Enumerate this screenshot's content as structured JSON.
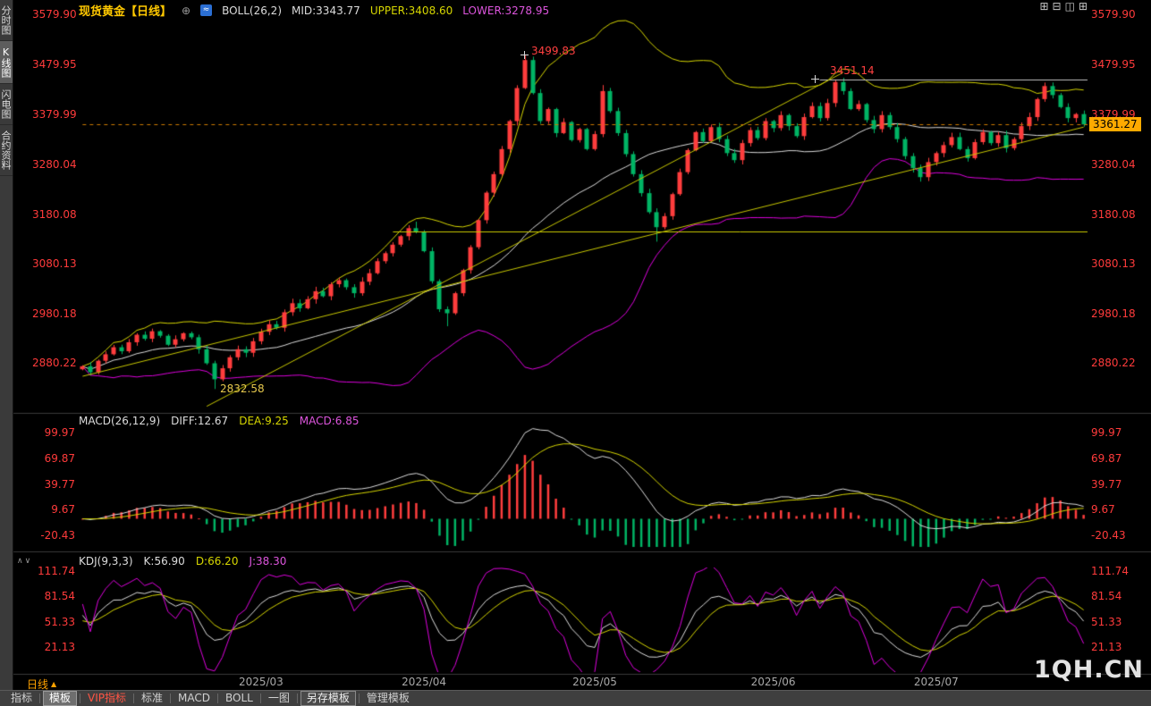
{
  "header": {
    "title": "现货黄金【日线】",
    "add_icon": "⊕",
    "indicator_icon": "≈",
    "boll_label": "BOLL(26,2)",
    "mid": "MID:3343.77",
    "upper": "UPPER:3408.60",
    "lower": "LOWER:3278.95"
  },
  "icons": {
    "window_layouts": [
      "⊞",
      "⊟",
      "◫",
      "⊞"
    ],
    "panel_expand": "∧",
    "panel_collapse": "∨",
    "period_arrow": "▲"
  },
  "sidebar": {
    "tabs": [
      {
        "label": "分时图",
        "active": false
      },
      {
        "label": "K线图",
        "active": true
      },
      {
        "label": "闪电图",
        "active": false
      },
      {
        "label": "合约资料",
        "active": false
      }
    ]
  },
  "price_axis": {
    "labels": [
      "3579.90",
      "3479.95",
      "3379.99",
      "3280.04",
      "3180.08",
      "3080.13",
      "2980.18",
      "2880.22"
    ]
  },
  "macd_axis": {
    "labels": [
      "99.97",
      "69.87",
      "39.77",
      "9.67",
      "-20.43"
    ]
  },
  "kdj_axis": {
    "labels": [
      "111.74",
      "81.54",
      "51.33",
      "21.13"
    ]
  },
  "macd_legend": {
    "name": "MACD(26,12,9)",
    "diff": "DIFF:12.67",
    "dea": "DEA:9.25",
    "macd": "MACD:6.85"
  },
  "kdj_legend": {
    "name": "KDJ(9,3,3)",
    "k": "K:56.90",
    "d": "D:66.20",
    "j": "J:38.30"
  },
  "annotations": {
    "peak": "3499.83",
    "june_high": "3451.14",
    "feb_low": "2832.58",
    "last_price": "3361.27"
  },
  "x_axis": {
    "period_label": "日线"
  },
  "watermark": "1QH.CN",
  "toolbar": {
    "items": [
      {
        "label": "指标",
        "style": "plain"
      },
      {
        "label": "模板",
        "style": "button"
      },
      {
        "label": "VIP指标",
        "style": "vip"
      },
      {
        "label": "标准",
        "style": "plain"
      },
      {
        "label": "MACD",
        "style": "plain"
      },
      {
        "label": "BOLL",
        "style": "plain"
      },
      {
        "label": "一图",
        "style": "plain"
      },
      {
        "label": "另存模板",
        "style": "boxed"
      },
      {
        "label": "管理模板",
        "style": "plain"
      }
    ]
  },
  "colors": {
    "up": "#ff3d3d",
    "down": "#00b464",
    "boll_mid": "#dcdcdc",
    "boll_upper": "#d6d600",
    "boll_lower": "#dd00dd",
    "diff_line": "#dcdcdc",
    "dea_line": "#d6d600",
    "kdj_k": "#dcdcdc",
    "kdj_d": "#d6d600",
    "kdj_j": "#dd00dd",
    "axis_text": "#ff3b3b",
    "title": "#ffc800",
    "tag_bg": "#ffaa00",
    "dashed_line": "#cc7a00"
  },
  "chart_data": {
    "type": "candlestick",
    "symbol": "现货黄金",
    "period": "日线",
    "first_open": 2872,
    "closes": [
      2878,
      2866,
      2889,
      2902,
      2916,
      2908,
      2926,
      2941,
      2933,
      2948,
      2939,
      2921,
      2932,
      2944,
      2936,
      2912,
      2884,
      2852,
      2874,
      2896,
      2912,
      2905,
      2928,
      2947,
      2962,
      2955,
      2986,
      3004,
      2994,
      3012,
      3028,
      3018,
      3042,
      3050,
      3036,
      3024,
      3047,
      3064,
      3088,
      3104,
      3121,
      3138,
      3154,
      3146,
      3108,
      3048,
      2992,
      2984,
      3024,
      3070,
      3116,
      3170,
      3225,
      3262,
      3312,
      3368,
      3434,
      3490,
      3424,
      3368,
      3392,
      3344,
      3366,
      3330,
      3352,
      3312,
      3342,
      3428,
      3388,
      3344,
      3302,
      3262,
      3224,
      3186,
      3156,
      3178,
      3222,
      3266,
      3310,
      3346,
      3328,
      3356,
      3332,
      3304,
      3290,
      3324,
      3350,
      3334,
      3368,
      3354,
      3380,
      3358,
      3338,
      3376,
      3398,
      3374,
      3404,
      3446,
      3428,
      3392,
      3402,
      3370,
      3352,
      3380,
      3356,
      3332,
      3298,
      3274,
      3256,
      3286,
      3304,
      3320,
      3336,
      3312,
      3294,
      3326,
      3346,
      3324,
      3340,
      3314,
      3332,
      3358,
      3376,
      3412,
      3438,
      3420,
      3396,
      3374,
      3382,
      3361.27
    ],
    "wick_overrides": {
      "17": {
        "low": 2832.58
      },
      "43": {
        "high": 3167
      },
      "47": {
        "low": 2958
      },
      "57": {
        "high": 3499.83
      },
      "67": {
        "high": 3440
      },
      "74": {
        "low": 3127
      },
      "97": {
        "high": 3451.14
      },
      "108": {
        "low": 3247
      },
      "124": {
        "high": 3445
      }
    },
    "x_ticks": [
      {
        "label": "2025/03",
        "i": 23
      },
      {
        "label": "2025/04",
        "i": 44
      },
      {
        "label": "2025/05",
        "i": 66
      },
      {
        "label": "2025/06",
        "i": 89
      },
      {
        "label": "2025/07",
        "i": 110
      }
    ],
    "boll": {
      "period": 26,
      "mult": 2,
      "mid": 3343.77,
      "upper": 3408.6,
      "lower": 3278.95
    },
    "macd": {
      "params": [
        26,
        12,
        9
      ],
      "diff": 12.67,
      "dea": 9.25,
      "macd": 6.85
    },
    "kdj": {
      "params": [
        9,
        3,
        3
      ],
      "k": 56.9,
      "d": 66.2,
      "j": 38.3
    },
    "last_price": 3361.27,
    "high_annotation": 3499.83,
    "low_annotation": 2832.58,
    "drawings": [
      {
        "type": "hline",
        "price": 3147,
        "from_i": 40,
        "color": "#c8c800"
      },
      {
        "type": "hline",
        "price": 3451.14,
        "from_i": 95,
        "color": "#c0c0c0"
      },
      {
        "type": "segment",
        "i1": 16,
        "p1": 2798,
        "i2": 98,
        "p2": 3465,
        "color": "#c8c800"
      },
      {
        "type": "segment",
        "i1": 0,
        "p1": 2858,
        "i2": 129,
        "p2": 3356,
        "color": "#c8c800"
      },
      {
        "type": "dashed_hline",
        "price": 3361.27,
        "from_i": 0,
        "color": "#cc7a00"
      }
    ]
  }
}
